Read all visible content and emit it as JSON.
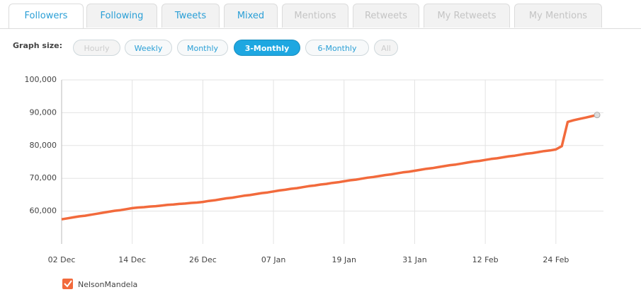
{
  "tabs": [
    "Followers",
    "Following",
    "Tweets",
    "Mixed",
    "Mentions",
    "Retweets",
    "My Retweets",
    "My Mentions"
  ],
  "graph_size_label": "Graph size:",
  "graph_sizes": [
    "Hourly",
    "Weekly",
    "Monthly",
    "3-Monthly",
    "6-Monthly",
    "All"
  ],
  "chart_data": {
    "type": "line",
    "categories": [
      "02 Dec",
      null,
      null,
      null,
      null,
      null,
      null,
      null,
      null,
      null,
      null,
      null,
      "14 Dec",
      null,
      null,
      null,
      null,
      null,
      null,
      null,
      null,
      null,
      null,
      null,
      "26 Dec",
      null,
      null,
      null,
      null,
      null,
      null,
      null,
      null,
      null,
      null,
      null,
      "07 Jan",
      null,
      null,
      null,
      null,
      null,
      null,
      null,
      null,
      null,
      null,
      null,
      "19 Jan",
      null,
      null,
      null,
      null,
      null,
      null,
      null,
      null,
      null,
      null,
      null,
      "31 Jan",
      null,
      null,
      null,
      null,
      null,
      null,
      null,
      null,
      null,
      null,
      null,
      "12 Feb",
      null,
      null,
      null,
      null,
      null,
      null,
      null,
      null,
      null,
      null,
      null,
      "24 Feb",
      null,
      null,
      null,
      null,
      null,
      null,
      null
    ],
    "series": [
      {
        "name": "NelsonMandela",
        "color": "#f26a3c",
        "values": [
          57500,
          57800,
          58100,
          58400,
          58600,
          58900,
          59200,
          59500,
          59800,
          60100,
          60300,
          60600,
          60900,
          61100,
          61200,
          61400,
          61500,
          61700,
          61900,
          62000,
          62200,
          62300,
          62500,
          62600,
          62800,
          63100,
          63300,
          63600,
          63900,
          64100,
          64400,
          64700,
          64900,
          65200,
          65500,
          65700,
          66000,
          66300,
          66500,
          66800,
          67000,
          67300,
          67600,
          67800,
          68100,
          68300,
          68600,
          68800,
          69100,
          69400,
          69600,
          69900,
          70200,
          70400,
          70700,
          71000,
          71200,
          71500,
          71800,
          72000,
          72300,
          72600,
          72900,
          73100,
          73400,
          73700,
          74000,
          74200,
          74500,
          74800,
          75100,
          75300,
          75600,
          75900,
          76100,
          76400,
          76700,
          76900,
          77200,
          77500,
          77700,
          78000,
          78300,
          78500,
          78800,
          79800,
          87200,
          87700,
          88100,
          88500,
          88900,
          89300
        ]
      }
    ],
    "ylim": [
      50000,
      100000
    ],
    "yticks": [
      {
        "value": 60000,
        "label": "60,000"
      },
      {
        "value": 70000,
        "label": "70,000"
      },
      {
        "value": 80000,
        "label": "80,000"
      },
      {
        "value": 90000,
        "label": "90,000"
      },
      {
        "value": 100000,
        "label": "100,000"
      }
    ],
    "grid": true
  }
}
